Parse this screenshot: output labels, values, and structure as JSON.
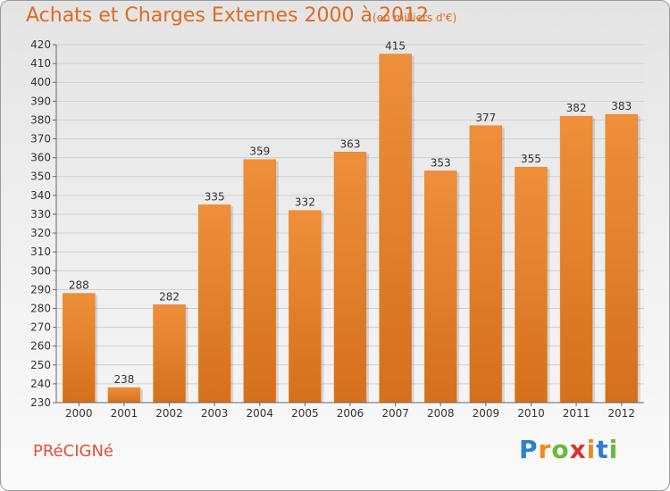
{
  "header": {
    "title": "Achats et Charges Externes 2000 à 2012",
    "subtitle": "(en milliers d'€)"
  },
  "footer": {
    "commune": "PRéCIGNé",
    "logo_letters": [
      "P",
      "r",
      "o",
      "x",
      "i",
      "t",
      "i"
    ],
    "logo_colors": [
      "#2b7fd0",
      "#ef8a1f",
      "#6ab93b",
      "#d8342b",
      "#ef8a1f",
      "#2b7fd0",
      "#6ab93b"
    ]
  },
  "chart_data": {
    "type": "bar",
    "categories": [
      "2000",
      "2001",
      "2002",
      "2003",
      "2004",
      "2005",
      "2006",
      "2007",
      "2008",
      "2009",
      "2010",
      "2011",
      "2012"
    ],
    "values": [
      288,
      238,
      282,
      335,
      359,
      332,
      363,
      415,
      353,
      377,
      355,
      382,
      383
    ],
    "data_labels": [
      "288",
      "238",
      "282",
      "335",
      "359",
      "332",
      "363",
      "415",
      "353",
      "377",
      "355",
      "382",
      "383"
    ],
    "yticks": [
      "230",
      "240",
      "250",
      "260",
      "270",
      "280",
      "290",
      "300",
      "310",
      "320",
      "330",
      "340",
      "350",
      "360",
      "370",
      "380",
      "390",
      "400",
      "410",
      "420"
    ],
    "ylim": [
      230,
      420
    ],
    "grid": true,
    "bar_color": "#ef8f3a",
    "bar_color_dark": "#d5701c"
  }
}
